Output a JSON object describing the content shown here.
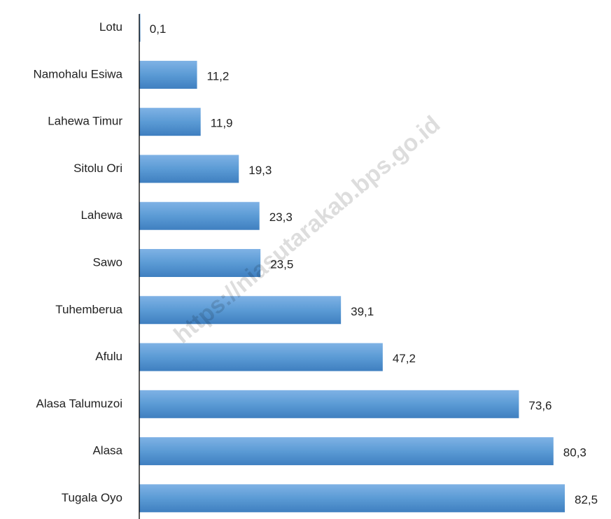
{
  "chart_data": {
    "type": "bar",
    "orientation": "horizontal",
    "categories": [
      "Lotu",
      "Namohalu Esiwa",
      "Lahewa Timur",
      "Sitolu Ori",
      "Lahewa",
      "Sawo",
      "Tuhemberua",
      "Afulu",
      "Alasa Talumuzoi",
      "Alasa",
      "Tugala Oyo"
    ],
    "values": [
      0.1,
      11.2,
      11.9,
      19.3,
      23.3,
      23.5,
      39.1,
      47.2,
      73.6,
      80.3,
      82.5
    ],
    "value_labels": [
      "0,1",
      "11,2",
      "11,9",
      "19,3",
      "23,3",
      "23,5",
      "39,1",
      "47,2",
      "73,6",
      "80,3",
      "82,5"
    ],
    "color": "#5b9bd5",
    "watermark": "https://niasutarakab.bps.go.id"
  }
}
